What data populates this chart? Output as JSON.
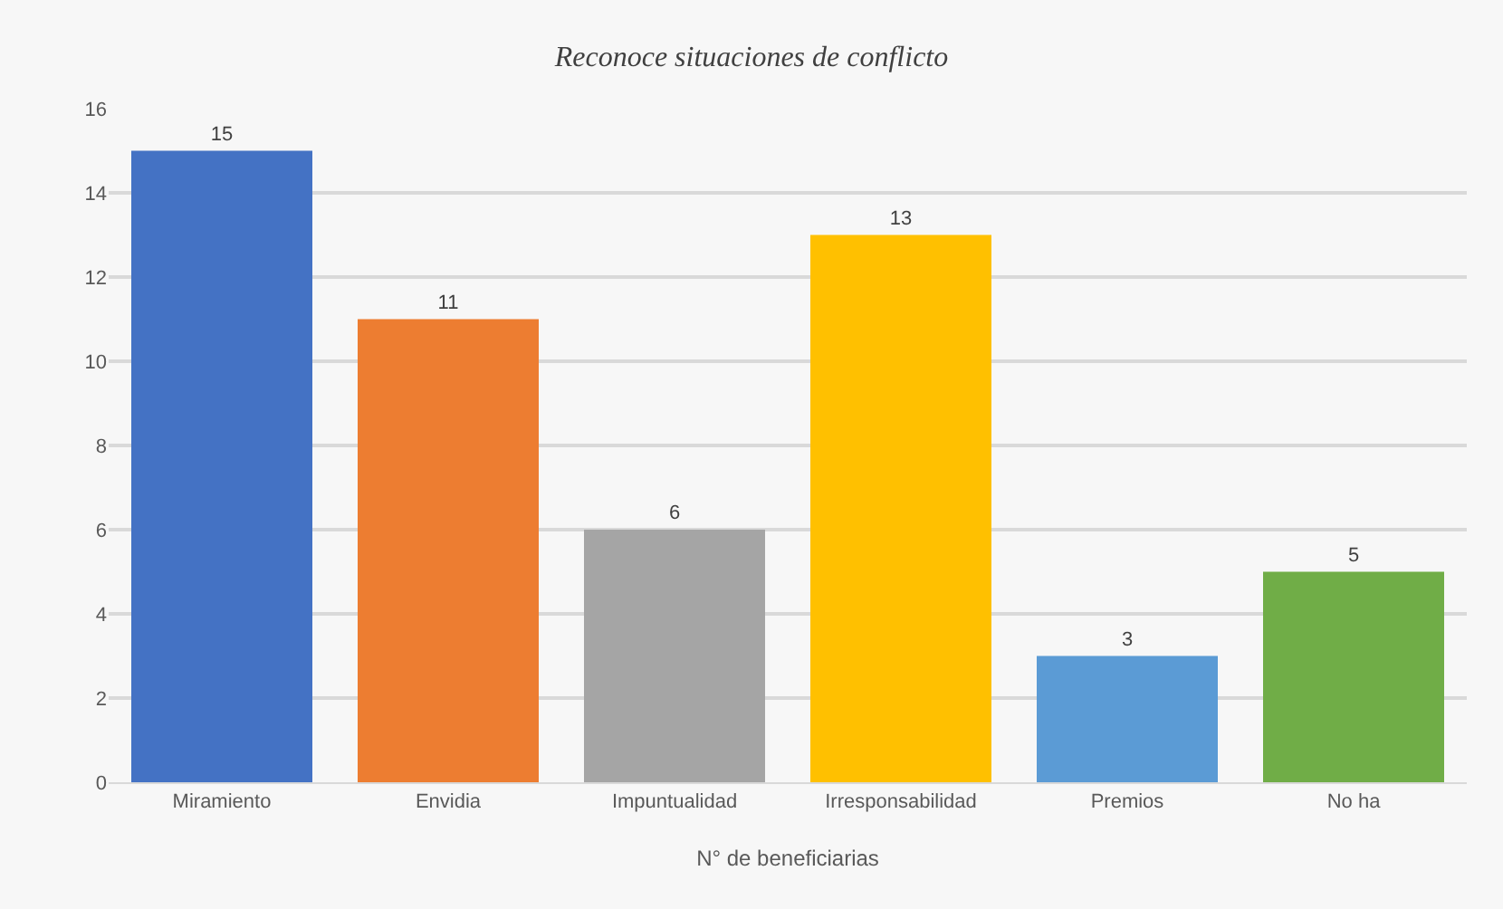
{
  "chart_data": {
    "type": "bar",
    "title": "Reconoce situaciones de conflicto",
    "xlabel": "N° de beneficiarias",
    "categories": [
      "Miramiento",
      "Envidia",
      "Impuntualidad",
      "Irresponsabilidad",
      "Premios",
      "No ha"
    ],
    "values": [
      15,
      11,
      6,
      13,
      3,
      5
    ],
    "colors": [
      "#4472c4",
      "#ed7d31",
      "#a5a5a5",
      "#ffc000",
      "#5b9bd5",
      "#70ad47"
    ],
    "ylim": [
      0,
      16
    ],
    "yticks": [
      0,
      2,
      4,
      6,
      8,
      10,
      12,
      14,
      16
    ],
    "grid": "y",
    "data_labels": true
  }
}
